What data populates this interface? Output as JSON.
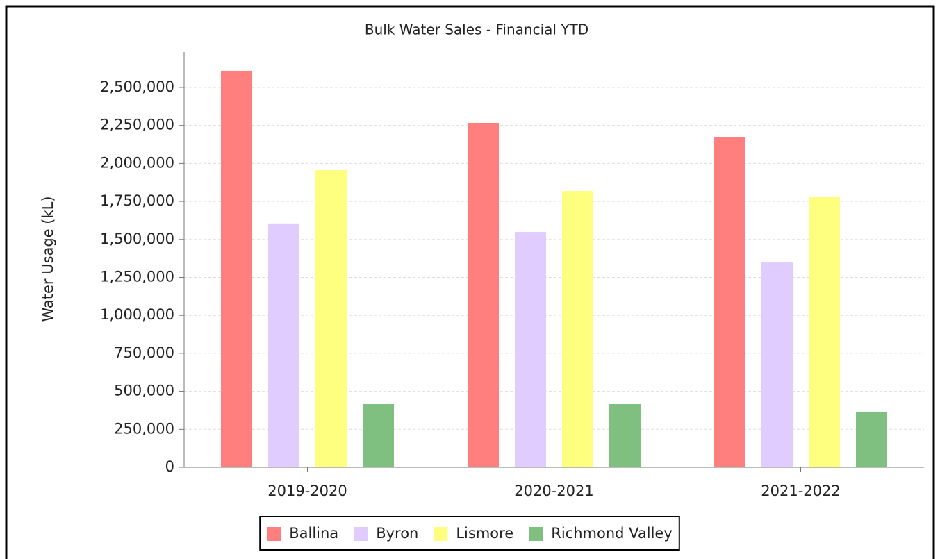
{
  "chart_data": {
    "type": "bar",
    "title": "Bulk Water Sales - Financial YTD",
    "y_label": "Water Usage (kL)",
    "categories": [
      "2019-2020",
      "2020-2021",
      "2021-2022"
    ],
    "series": [
      {
        "name": "Ballina",
        "color": "#ff7f7f",
        "values": [
          2610000,
          2267000,
          2171000
        ]
      },
      {
        "name": "Byron",
        "color": "#e0ccff",
        "values": [
          1605000,
          1549000,
          1348000
        ]
      },
      {
        "name": "Lismore",
        "color": "#ffff7f",
        "values": [
          1956000,
          1819000,
          1778000
        ]
      },
      {
        "name": "Richmond Valley",
        "color": "#7fbf7f",
        "values": [
          416000,
          416000,
          366000
        ]
      }
    ],
    "ylim": [
      0,
      2733000
    ],
    "yticks": [
      0,
      {
        "value": 250000,
        "label": "250,000"
      },
      {
        "value": 500000,
        "label": "500,000"
      },
      {
        "value": 750000,
        "label": "750,000"
      },
      {
        "value": 1000000,
        "label": "1,000,000"
      },
      {
        "value": 1250000,
        "label": "1,250,000"
      },
      {
        "value": 1500000,
        "label": "1,500,000"
      },
      {
        "value": 1750000,
        "label": "1,750,000"
      },
      {
        "value": 2000000,
        "label": "2,000,000"
      },
      {
        "value": 2250000,
        "label": "2,250,000"
      },
      {
        "value": 2500000,
        "label": "2,500,000"
      }
    ],
    "grid": true,
    "legend": "bottom"
  }
}
